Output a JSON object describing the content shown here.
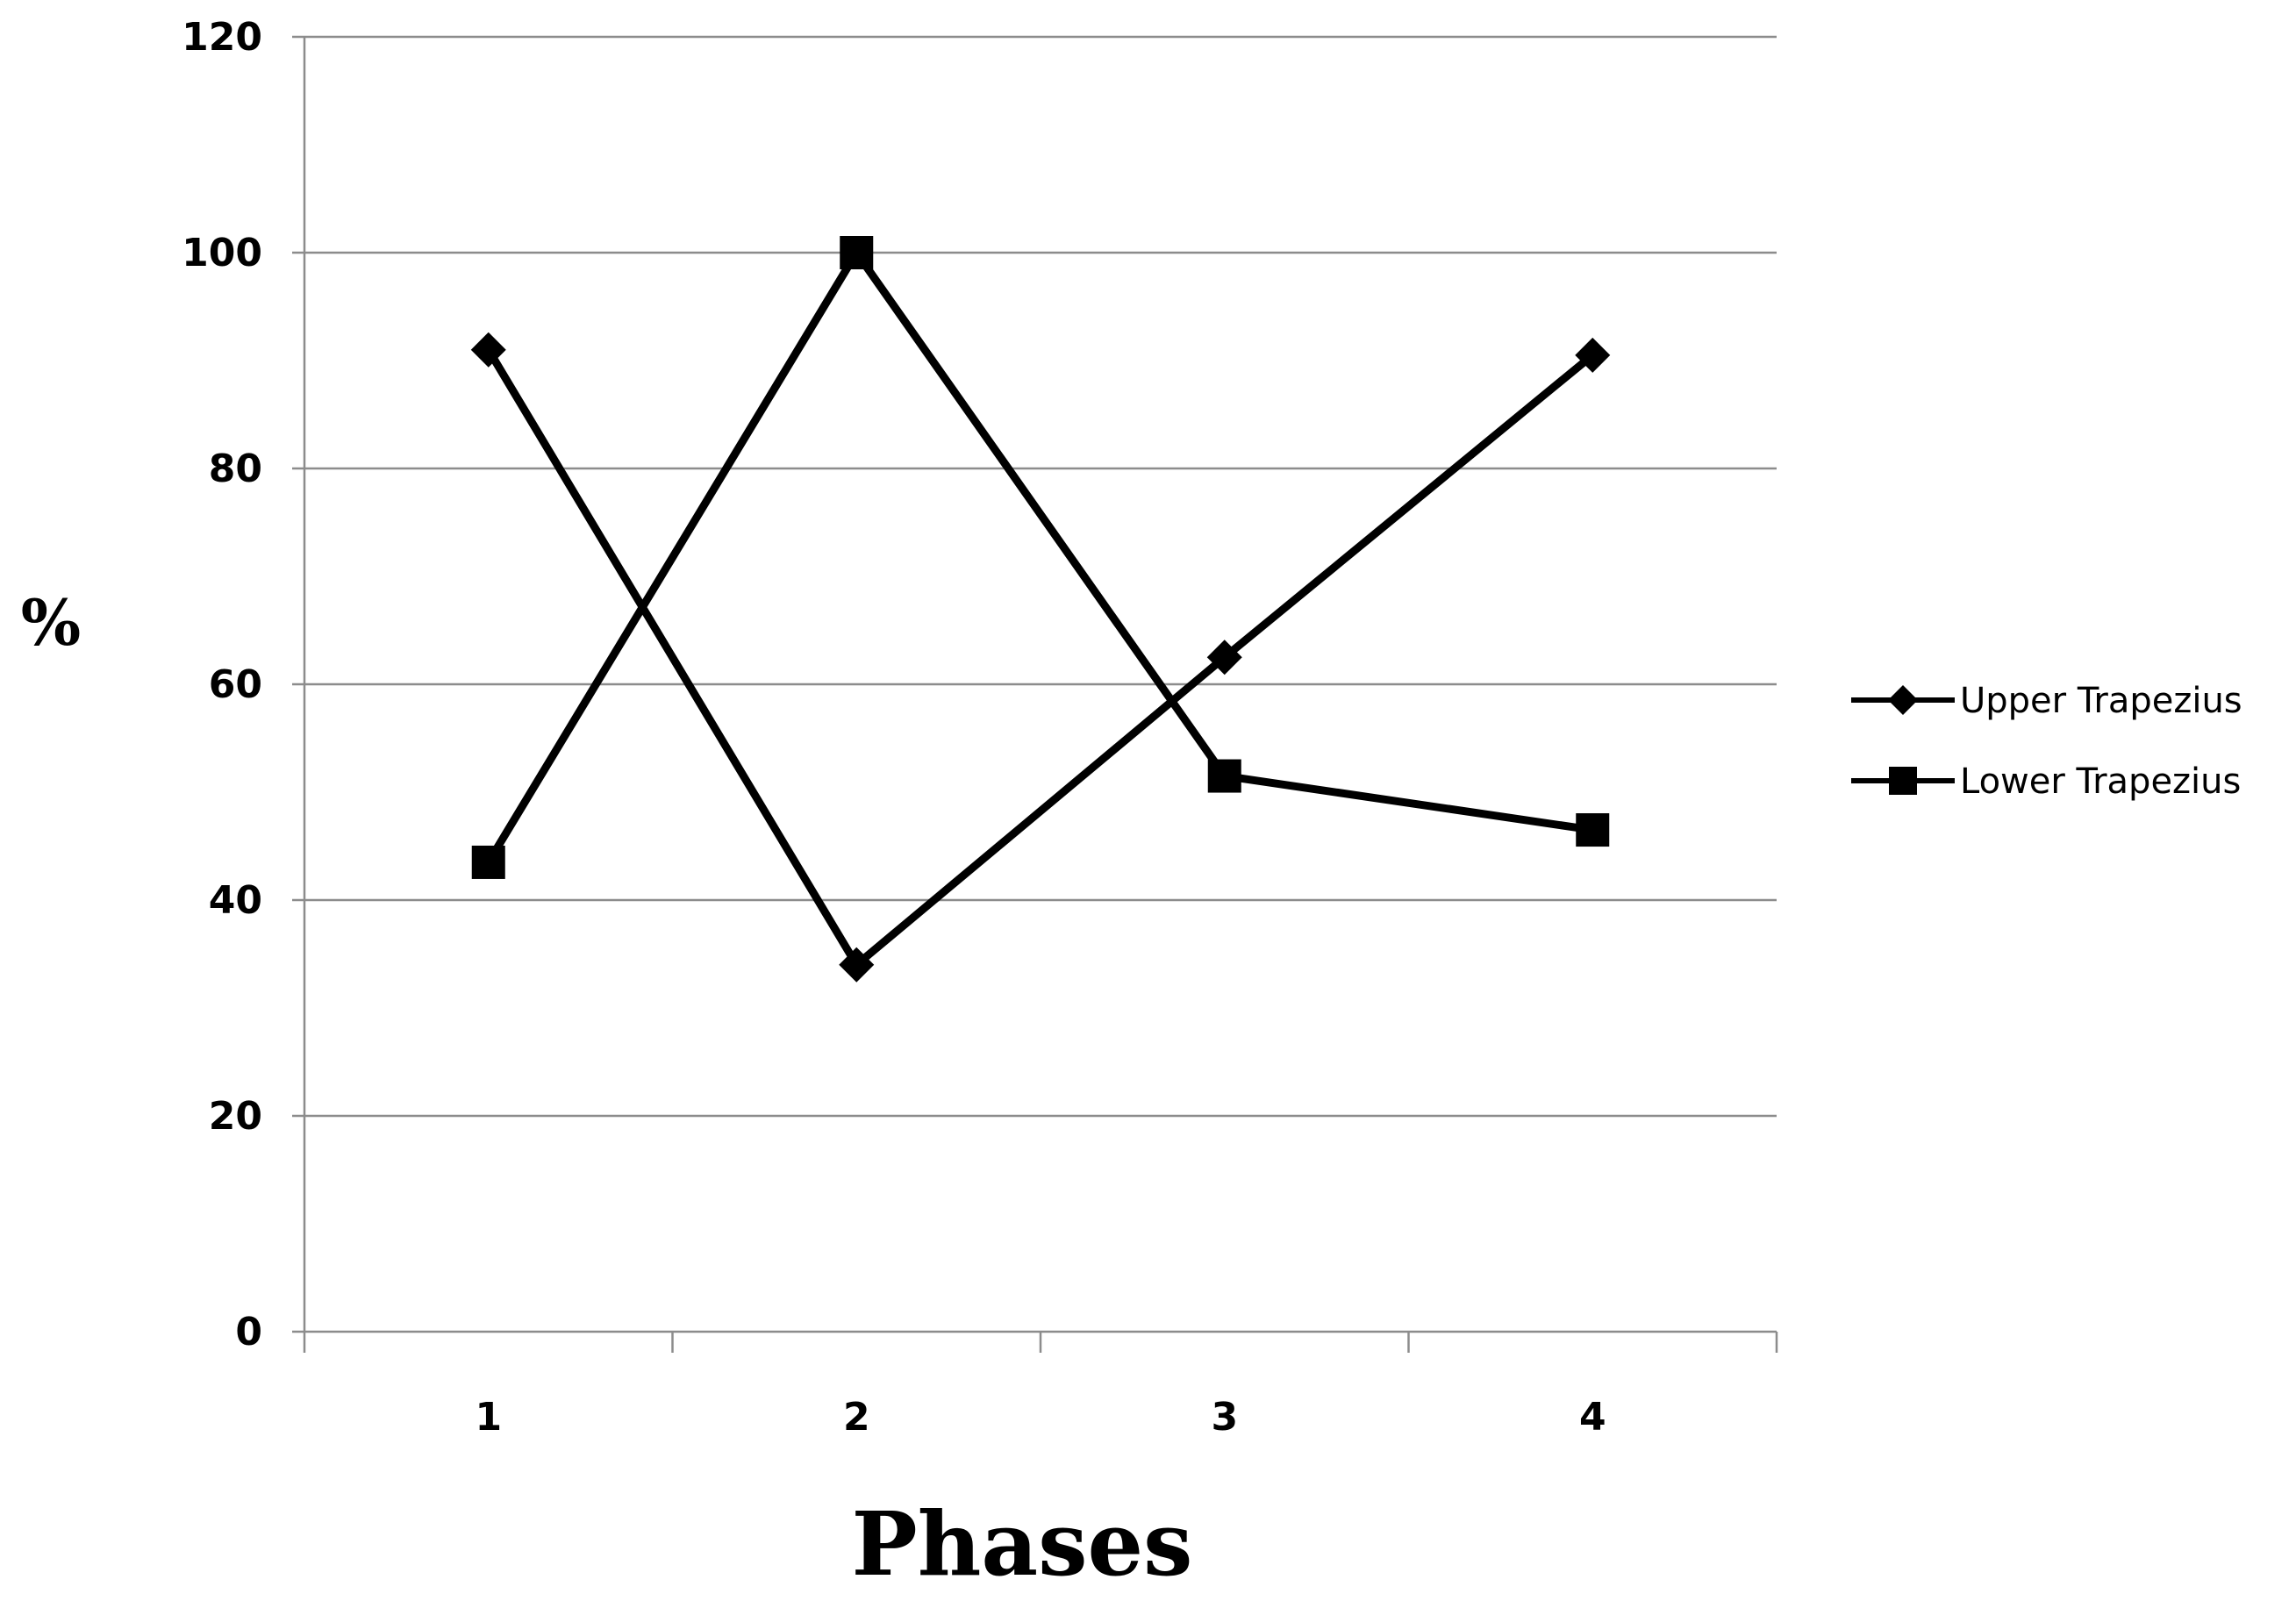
{
  "chart_data": {
    "type": "line",
    "title": "",
    "xlabel": "Phases",
    "ylabel": "%",
    "categories": [
      "1",
      "2",
      "3",
      "4"
    ],
    "ylim": [
      0,
      120
    ],
    "yticks": [
      "0",
      "20",
      "40",
      "60",
      "80",
      "100",
      "120"
    ],
    "grid": "horizontal",
    "legend_position": "right",
    "series": [
      {
        "name": "Upper Trapezius",
        "marker": "diamond",
        "color": "#000000",
        "values": [
          91,
          34,
          62.5,
          90.5
        ]
      },
      {
        "name": "Lower Trapezius",
        "marker": "square",
        "color": "#000000",
        "values": [
          43.5,
          100,
          51.5,
          46.5
        ]
      }
    ]
  }
}
